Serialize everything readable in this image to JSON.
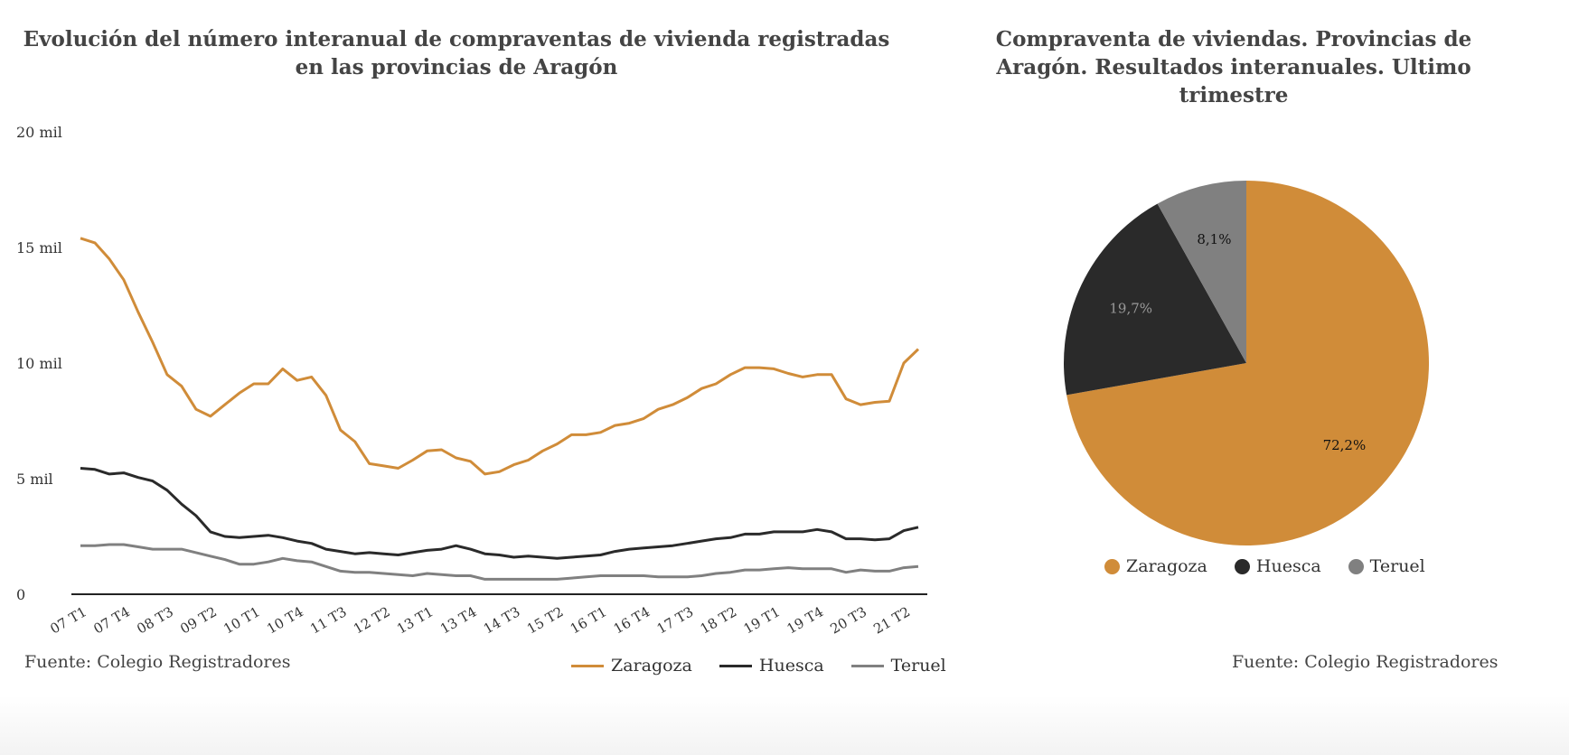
{
  "colors": {
    "zaragoza": "#d08c39",
    "huesca": "#2a2a2a",
    "teruel": "#808080"
  },
  "line_chart": {
    "title": "Evolución del número interanual de compraventas de vivienda registradas en las provincias de Aragón",
    "source": "Fuente: Colegio Registradores",
    "legend": [
      "Zaragoza",
      "Huesca",
      "Teruel"
    ]
  },
  "pie_chart": {
    "title": "Compraventa de viviendas. Provincias de Aragón. Resultados interanuales. Ultimo trimestre",
    "source": "Fuente: Colegio Registradores",
    "legend": [
      "Zaragoza",
      "Huesca",
      "Teruel"
    ]
  },
  "chart_data": [
    {
      "type": "line",
      "title": "Evolución del número interanual de compraventas de vivienda registradas en las provincias de Aragón",
      "xlabel": "",
      "ylabel": "",
      "ylim": [
        0,
        20000
      ],
      "yticks": [
        0,
        5000,
        10000,
        15000,
        20000
      ],
      "ytick_labels": [
        "0",
        "5 mil",
        "10 mil",
        "15 mil",
        "20 mil"
      ],
      "x": [
        "07 T1",
        "07 T2",
        "07 T3",
        "07 T4",
        "08 T1",
        "08 T2",
        "08 T3",
        "08 T4",
        "09 T1",
        "09 T2",
        "09 T3",
        "09 T4",
        "10 T1",
        "10 T2",
        "10 T3",
        "10 T4",
        "11 T1",
        "11 T2",
        "11 T3",
        "11 T4",
        "12 T1",
        "12 T2",
        "12 T3",
        "12 T4",
        "13 T1",
        "13 T2",
        "13 T3",
        "13 T4",
        "14 T1",
        "14 T2",
        "14 T3",
        "14 T4",
        "15 T1",
        "15 T2",
        "15 T3",
        "15 T4",
        "16 T1",
        "16 T2",
        "16 T3",
        "16 T4",
        "17 T1",
        "17 T2",
        "17 T3",
        "17 T4",
        "18 T1",
        "18 T2",
        "18 T3",
        "18 T4",
        "19 T1",
        "19 T2",
        "19 T3",
        "19 T4",
        "20 T1",
        "20 T2",
        "20 T3",
        "20 T4",
        "21 T1",
        "21 T2",
        "21 T3"
      ],
      "xtick_labels": [
        "07 T1",
        "07 T4",
        "08 T3",
        "09 T2",
        "10 T1",
        "10 T4",
        "11 T3",
        "12 T2",
        "13 T1",
        "13 T4",
        "14 T3",
        "15 T2",
        "16 T1",
        "16 T4",
        "17 T3",
        "18 T2",
        "19 T1",
        "19 T4",
        "20 T3",
        "21 T2"
      ],
      "legend_position": "bottom-right",
      "series": [
        {
          "name": "Zaragoza",
          "values": [
            15400,
            15200,
            14500,
            13600,
            12200,
            10900,
            9500,
            9000,
            8000,
            7700,
            8200,
            8700,
            9100,
            9100,
            9750,
            9250,
            9400,
            8600,
            7100,
            6600,
            5650,
            5550,
            5450,
            5800,
            6200,
            6250,
            5900,
            5750,
            5200,
            5300,
            5600,
            5800,
            6200,
            6500,
            6900,
            6900,
            7000,
            7300,
            7400,
            7600,
            8000,
            8200,
            8500,
            8900,
            9100,
            9500,
            9800,
            9800,
            9750,
            9550,
            9400,
            9500,
            9500,
            8450,
            8200,
            8300,
            8350,
            10000,
            10600
          ]
        },
        {
          "name": "Huesca",
          "values": [
            5450,
            5400,
            5200,
            5250,
            5050,
            4900,
            4500,
            3900,
            3400,
            2700,
            2500,
            2450,
            2500,
            2550,
            2450,
            2300,
            2200,
            1950,
            1850,
            1750,
            1800,
            1750,
            1700,
            1800,
            1900,
            1950,
            2100,
            1950,
            1750,
            1700,
            1600,
            1650,
            1600,
            1550,
            1600,
            1650,
            1700,
            1850,
            1950,
            2000,
            2050,
            2100,
            2200,
            2300,
            2400,
            2450,
            2600,
            2600,
            2700,
            2700,
            2700,
            2800,
            2700,
            2400,
            2400,
            2350,
            2400,
            2750,
            2900
          ]
        },
        {
          "name": "Teruel",
          "values": [
            2100,
            2100,
            2150,
            2150,
            2050,
            1950,
            1950,
            1950,
            1800,
            1650,
            1500,
            1300,
            1300,
            1400,
            1550,
            1450,
            1400,
            1200,
            1000,
            950,
            950,
            900,
            850,
            800,
            900,
            850,
            800,
            800,
            650,
            650,
            650,
            650,
            650,
            650,
            700,
            750,
            800,
            800,
            800,
            800,
            750,
            750,
            750,
            800,
            900,
            950,
            1050,
            1050,
            1100,
            1150,
            1100,
            1100,
            1100,
            950,
            1050,
            1000,
            1000,
            1150,
            1200
          ]
        }
      ]
    },
    {
      "type": "pie",
      "title": "Compraventa de viviendas. Provincias de Aragón. Resultados interanuales. Ultimo trimestre",
      "categories": [
        "Zaragoza",
        "Huesca",
        "Teruel"
      ],
      "values": [
        72.2,
        19.7,
        8.1
      ],
      "labels": [
        "72,2%",
        "19,7%",
        "8,1%"
      ],
      "start": "12 o'clock",
      "direction": "clockwise",
      "legend_position": "bottom"
    }
  ]
}
